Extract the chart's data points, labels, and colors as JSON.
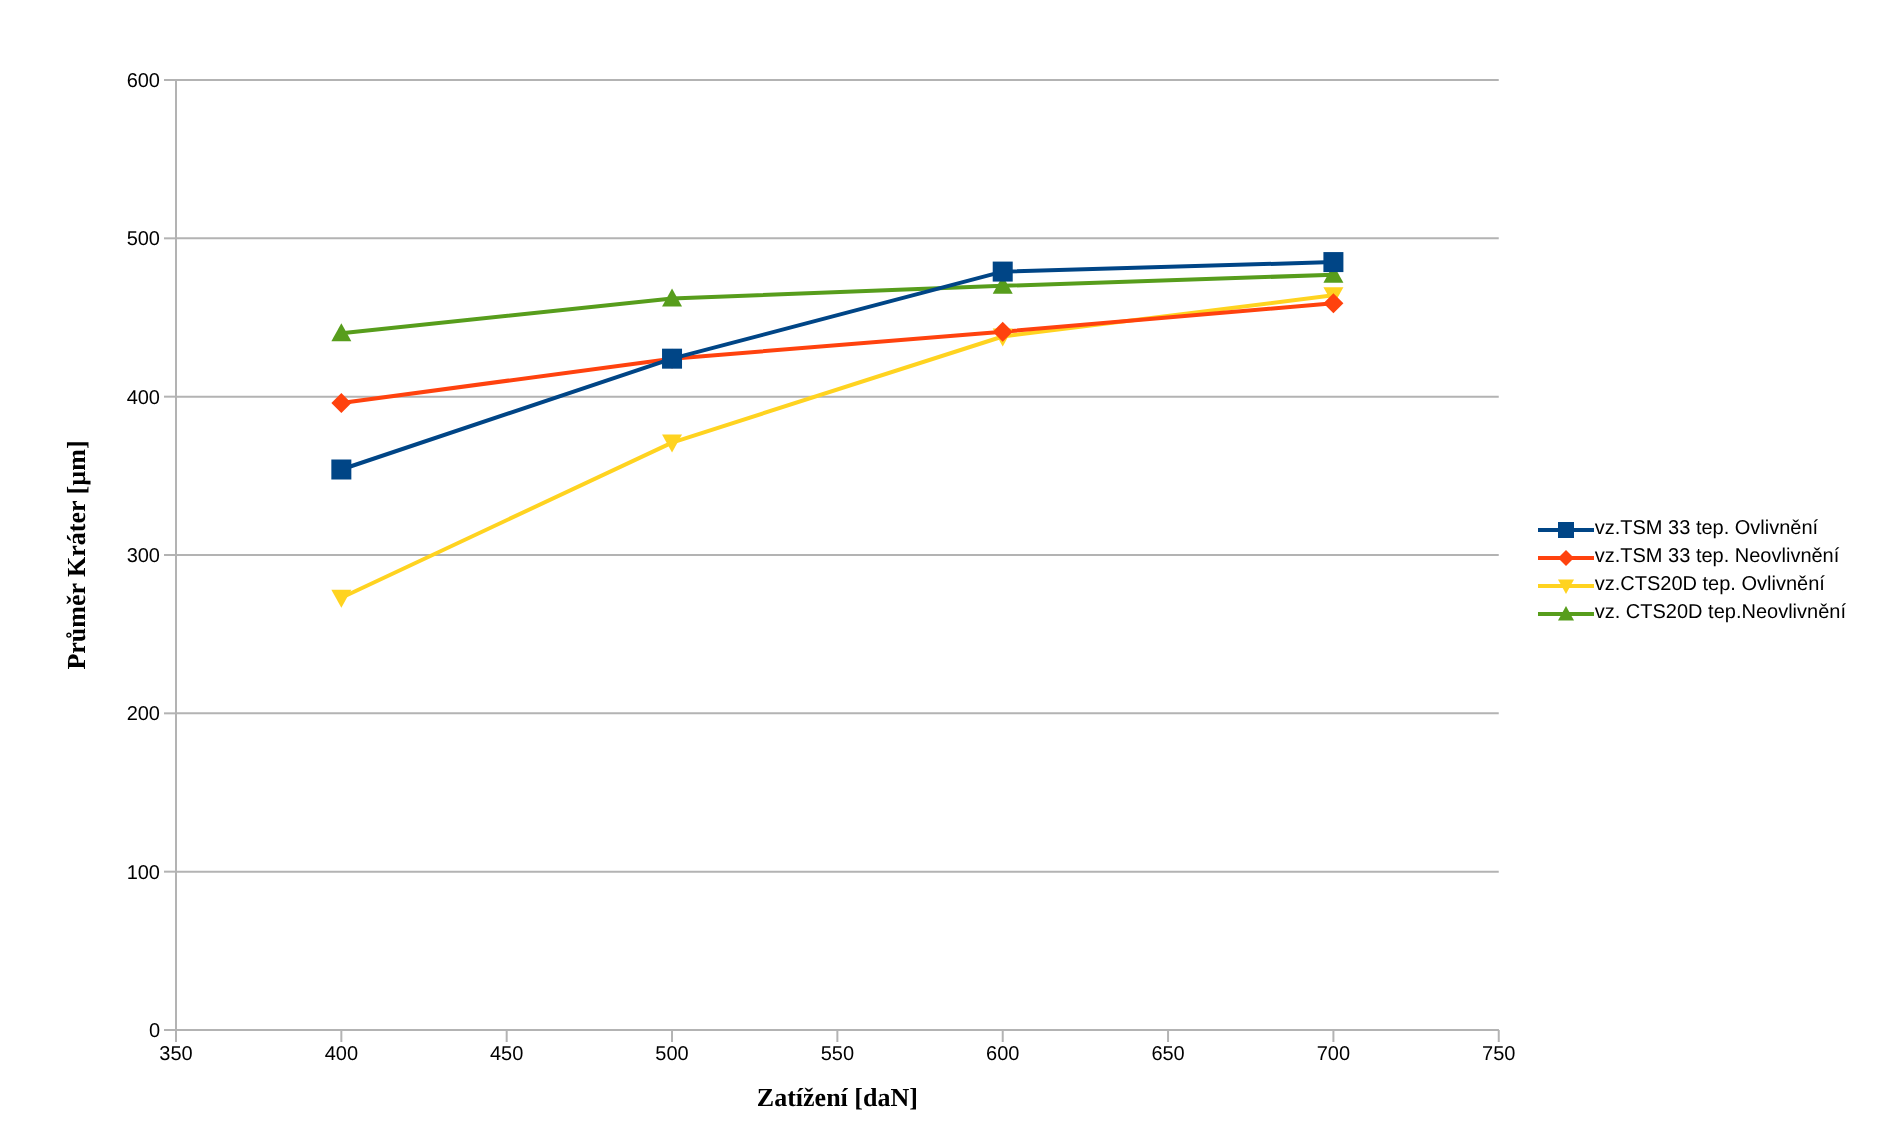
{
  "chart_data": {
    "type": "line",
    "xlabel": "Zatížení [daN]",
    "ylabel": "Průměr Kráter [µm]",
    "x": [
      400,
      500,
      600,
      700
    ],
    "series": [
      {
        "name": "vz.TSM  33 tep. Ovlivnění",
        "color": "#004586",
        "marker": "square",
        "values": [
          354,
          424,
          479,
          485
        ]
      },
      {
        "name": "vz.TSM  33 tep. Neovlivnění",
        "color": "#ff420e",
        "marker": "diamond",
        "values": [
          396,
          424,
          441,
          459
        ]
      },
      {
        "name": "vz.CTS20D tep. Ovlivnění",
        "color": "#ffd320",
        "marker": "triangle-down",
        "values": [
          273,
          371,
          438,
          464
        ]
      },
      {
        "name": "vz. CTS20D tep.Neovlivnění",
        "color": "#579d1c",
        "marker": "triangle",
        "values": [
          440,
          462,
          470,
          477
        ]
      }
    ],
    "xlim": [
      350,
      750
    ],
    "xticks": [
      350,
      400,
      450,
      500,
      550,
      600,
      650,
      700,
      750
    ],
    "ylim": [
      0,
      600
    ],
    "yticks": [
      0,
      100,
      200,
      300,
      400,
      500,
      600
    ],
    "grid": "y",
    "legend": "right"
  }
}
